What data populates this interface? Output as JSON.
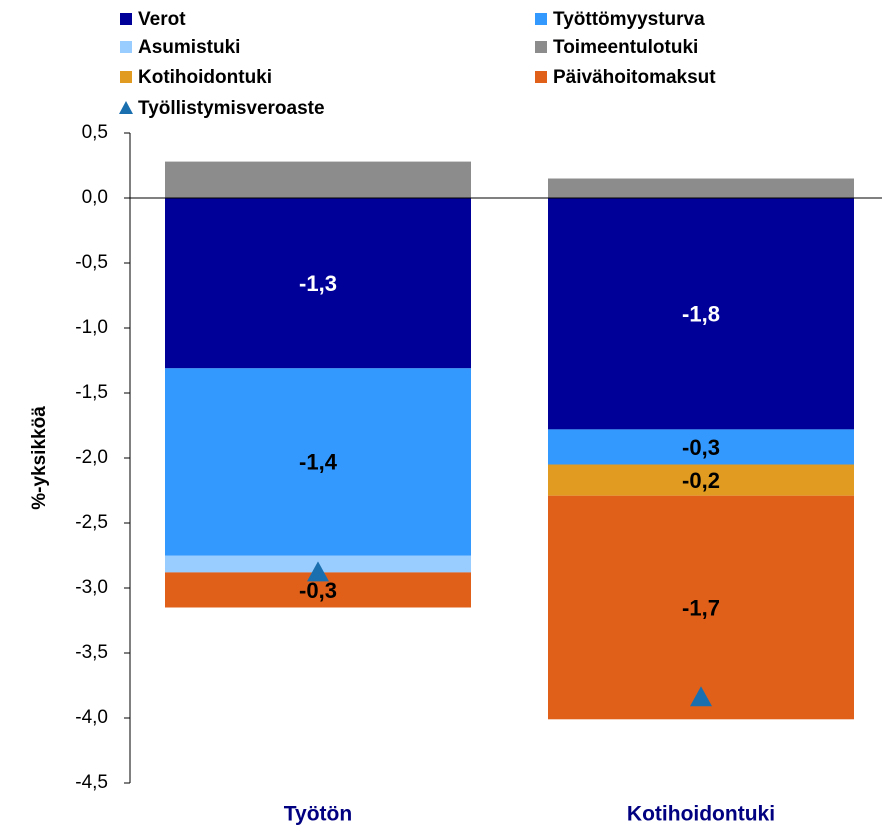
{
  "chart_data": {
    "type": "stacked_bar",
    "y_label": "%-yksikköä",
    "categories": [
      "Työtön",
      "Kotihoidontuki"
    ],
    "series": [
      {
        "name": "Verot",
        "color": "#000099",
        "values": [
          -1.31,
          -1.78
        ],
        "value_labels": [
          "-1,3",
          "-1,8"
        ]
      },
      {
        "name": "Työttömyysturva",
        "color": "#3399ff",
        "values": [
          -1.44,
          -0.27
        ],
        "value_labels": [
          "-1,4",
          "-0,3"
        ]
      },
      {
        "name": "Asumistuki",
        "color": "#99ccff",
        "values": [
          -0.13,
          null
        ]
      },
      {
        "name": "Toimeentulotuki",
        "color": "#8c8c8c",
        "values": [
          0.28,
          0.15
        ]
      },
      {
        "name": "Kotihoidontuki",
        "color": "#e09b20",
        "values": [
          null,
          -0.24
        ],
        "value_labels": [
          null,
          "-0,2"
        ]
      },
      {
        "name": "Päivähoitomaksut",
        "color": "#e0601a",
        "values": [
          -0.27,
          -1.72
        ],
        "value_labels": [
          "-0,3",
          "-1,7"
        ]
      },
      {
        "name": "Työllistymisveroaste",
        "color": "#1a6faf",
        "type": "marker",
        "values": [
          -2.88,
          -3.84
        ]
      }
    ],
    "ylim": [
      -4.5,
      0.5
    ],
    "yticks": [
      {
        "value": 0.5,
        "label": "0,5"
      },
      {
        "value": 0,
        "label": "0,0"
      },
      {
        "value": -0.5,
        "label": "-0,5"
      },
      {
        "value": -1,
        "label": "-1,0"
      },
      {
        "value": -1.5,
        "label": "-1,5"
      },
      {
        "value": -2,
        "label": "-2,0"
      },
      {
        "value": -2.5,
        "label": "-2,5"
      },
      {
        "value": -3,
        "label": "-3,0"
      },
      {
        "value": -3.5,
        "label": "-3,5"
      },
      {
        "value": -4,
        "label": "-4,0"
      },
      {
        "value": -4.5,
        "label": "-4,5"
      }
    ]
  }
}
